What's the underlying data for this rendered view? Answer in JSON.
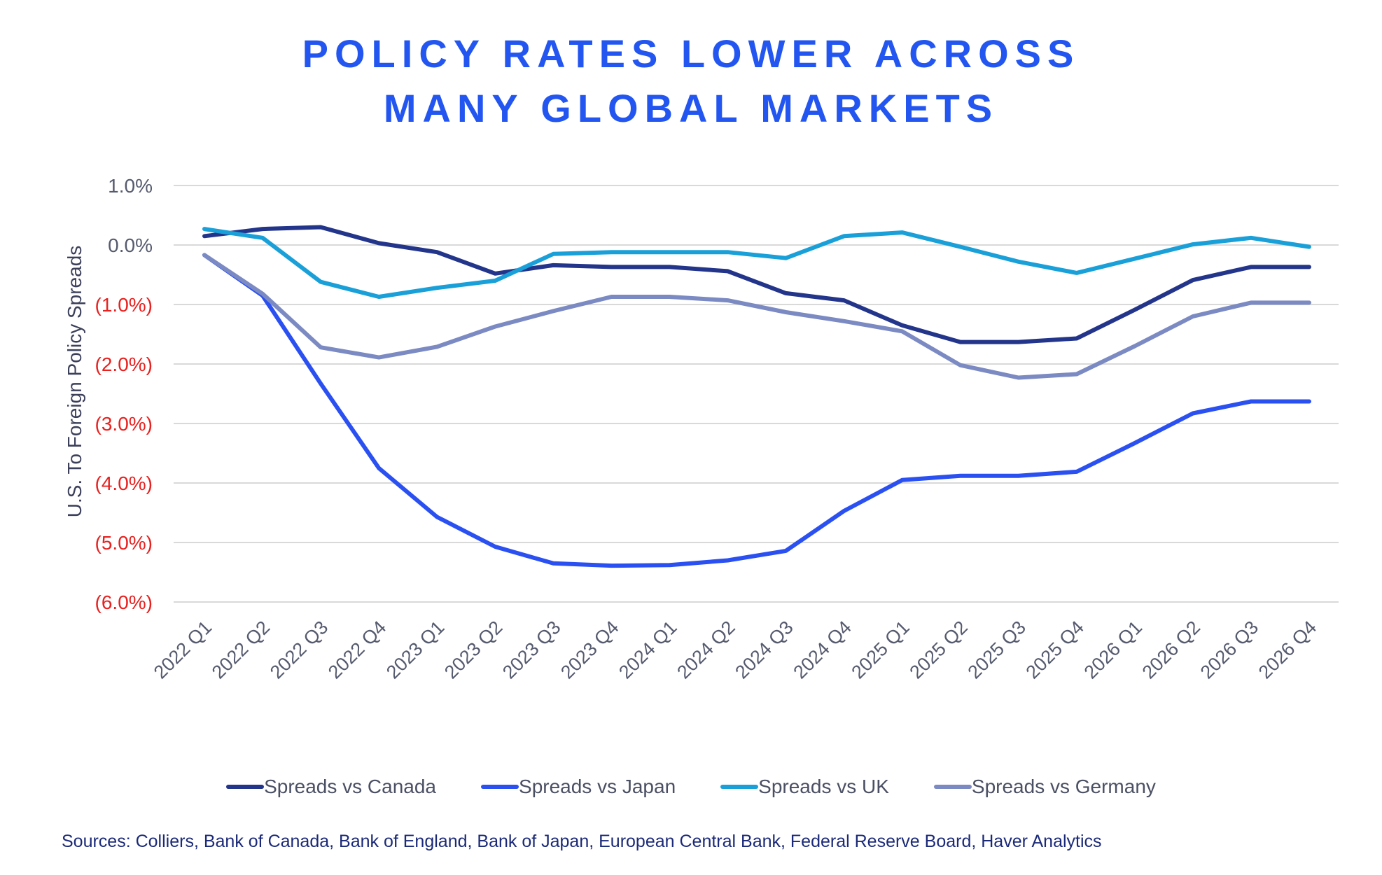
{
  "title_line1": "POLICY RATES LOWER ACROSS",
  "title_line2": "MANY GLOBAL MARKETS",
  "colors": {
    "title": "#2356f0",
    "negative_tick": "#e8201e",
    "positive_tick": "#555a6e",
    "axis_label": "#3b3f5a",
    "grid": "#d9d9d9"
  },
  "source": "Sources: Colliers, Bank of Canada, Bank of England, Bank of Japan, European Central Bank, Federal Reserve Board, Haver Analytics",
  "chart_data": {
    "type": "line",
    "ylabel": "U.S. To Foreign Policy Spreads",
    "ylim": [
      -6.0,
      1.0
    ],
    "yticks": [
      1.0,
      0.0,
      -1.0,
      -2.0,
      -3.0,
      -4.0,
      -5.0,
      -6.0
    ],
    "ytick_labels": [
      "1.0%",
      "0.0%",
      "(1.0%)",
      "(2.0%)",
      "(3.0%)",
      "(4.0%)",
      "(5.0%)",
      "(6.0%)"
    ],
    "grid": true,
    "legend_position": "bottom",
    "categories": [
      "2022 Q1",
      "2022 Q2",
      "2022 Q3",
      "2022 Q4",
      "2023 Q1",
      "2023 Q2",
      "2023 Q3",
      "2023 Q4",
      "2024 Q1",
      "2024 Q2",
      "2024 Q3",
      "2024 Q4",
      "2025 Q1",
      "2025 Q2",
      "2025 Q3",
      "2025 Q4",
      "2026 Q1",
      "2026 Q2",
      "2026 Q3",
      "2026 Q4"
    ],
    "series": [
      {
        "name": "Spreads vs Canada",
        "color": "#23358a",
        "values": [
          0.15,
          0.27,
          0.3,
          0.03,
          -0.12,
          -0.48,
          -0.34,
          -0.37,
          -0.37,
          -0.44,
          -0.81,
          -0.93,
          -1.35,
          -1.63,
          -1.63,
          -1.57,
          -1.09,
          -0.59,
          -0.37,
          -0.37
        ]
      },
      {
        "name": "Spreads vs Japan",
        "color": "#2a50f2",
        "values": [
          -0.17,
          -0.85,
          -2.33,
          -3.75,
          -4.57,
          -5.07,
          -5.35,
          -5.39,
          -5.38,
          -5.3,
          -5.14,
          -4.47,
          -3.95,
          -3.88,
          -3.88,
          -3.81,
          -3.33,
          -2.83,
          -2.63,
          -2.63
        ]
      },
      {
        "name": "Spreads vs UK",
        "color": "#1aa0d8",
        "values": [
          0.27,
          0.12,
          -0.62,
          -0.87,
          -0.72,
          -0.6,
          -0.15,
          -0.12,
          -0.12,
          -0.12,
          -0.22,
          0.15,
          0.21,
          -0.03,
          -0.28,
          -0.47,
          -0.23,
          0.01,
          0.12,
          -0.03
        ]
      },
      {
        "name": "Spreads vs Germany",
        "color": "#7b8ac2",
        "values": [
          -0.17,
          -0.82,
          -1.72,
          -1.89,
          -1.71,
          -1.37,
          -1.11,
          -0.87,
          -0.87,
          -0.93,
          -1.13,
          -1.28,
          -1.45,
          -2.02,
          -2.23,
          -2.17,
          -1.7,
          -1.2,
          -0.97,
          -0.97
        ]
      }
    ]
  }
}
